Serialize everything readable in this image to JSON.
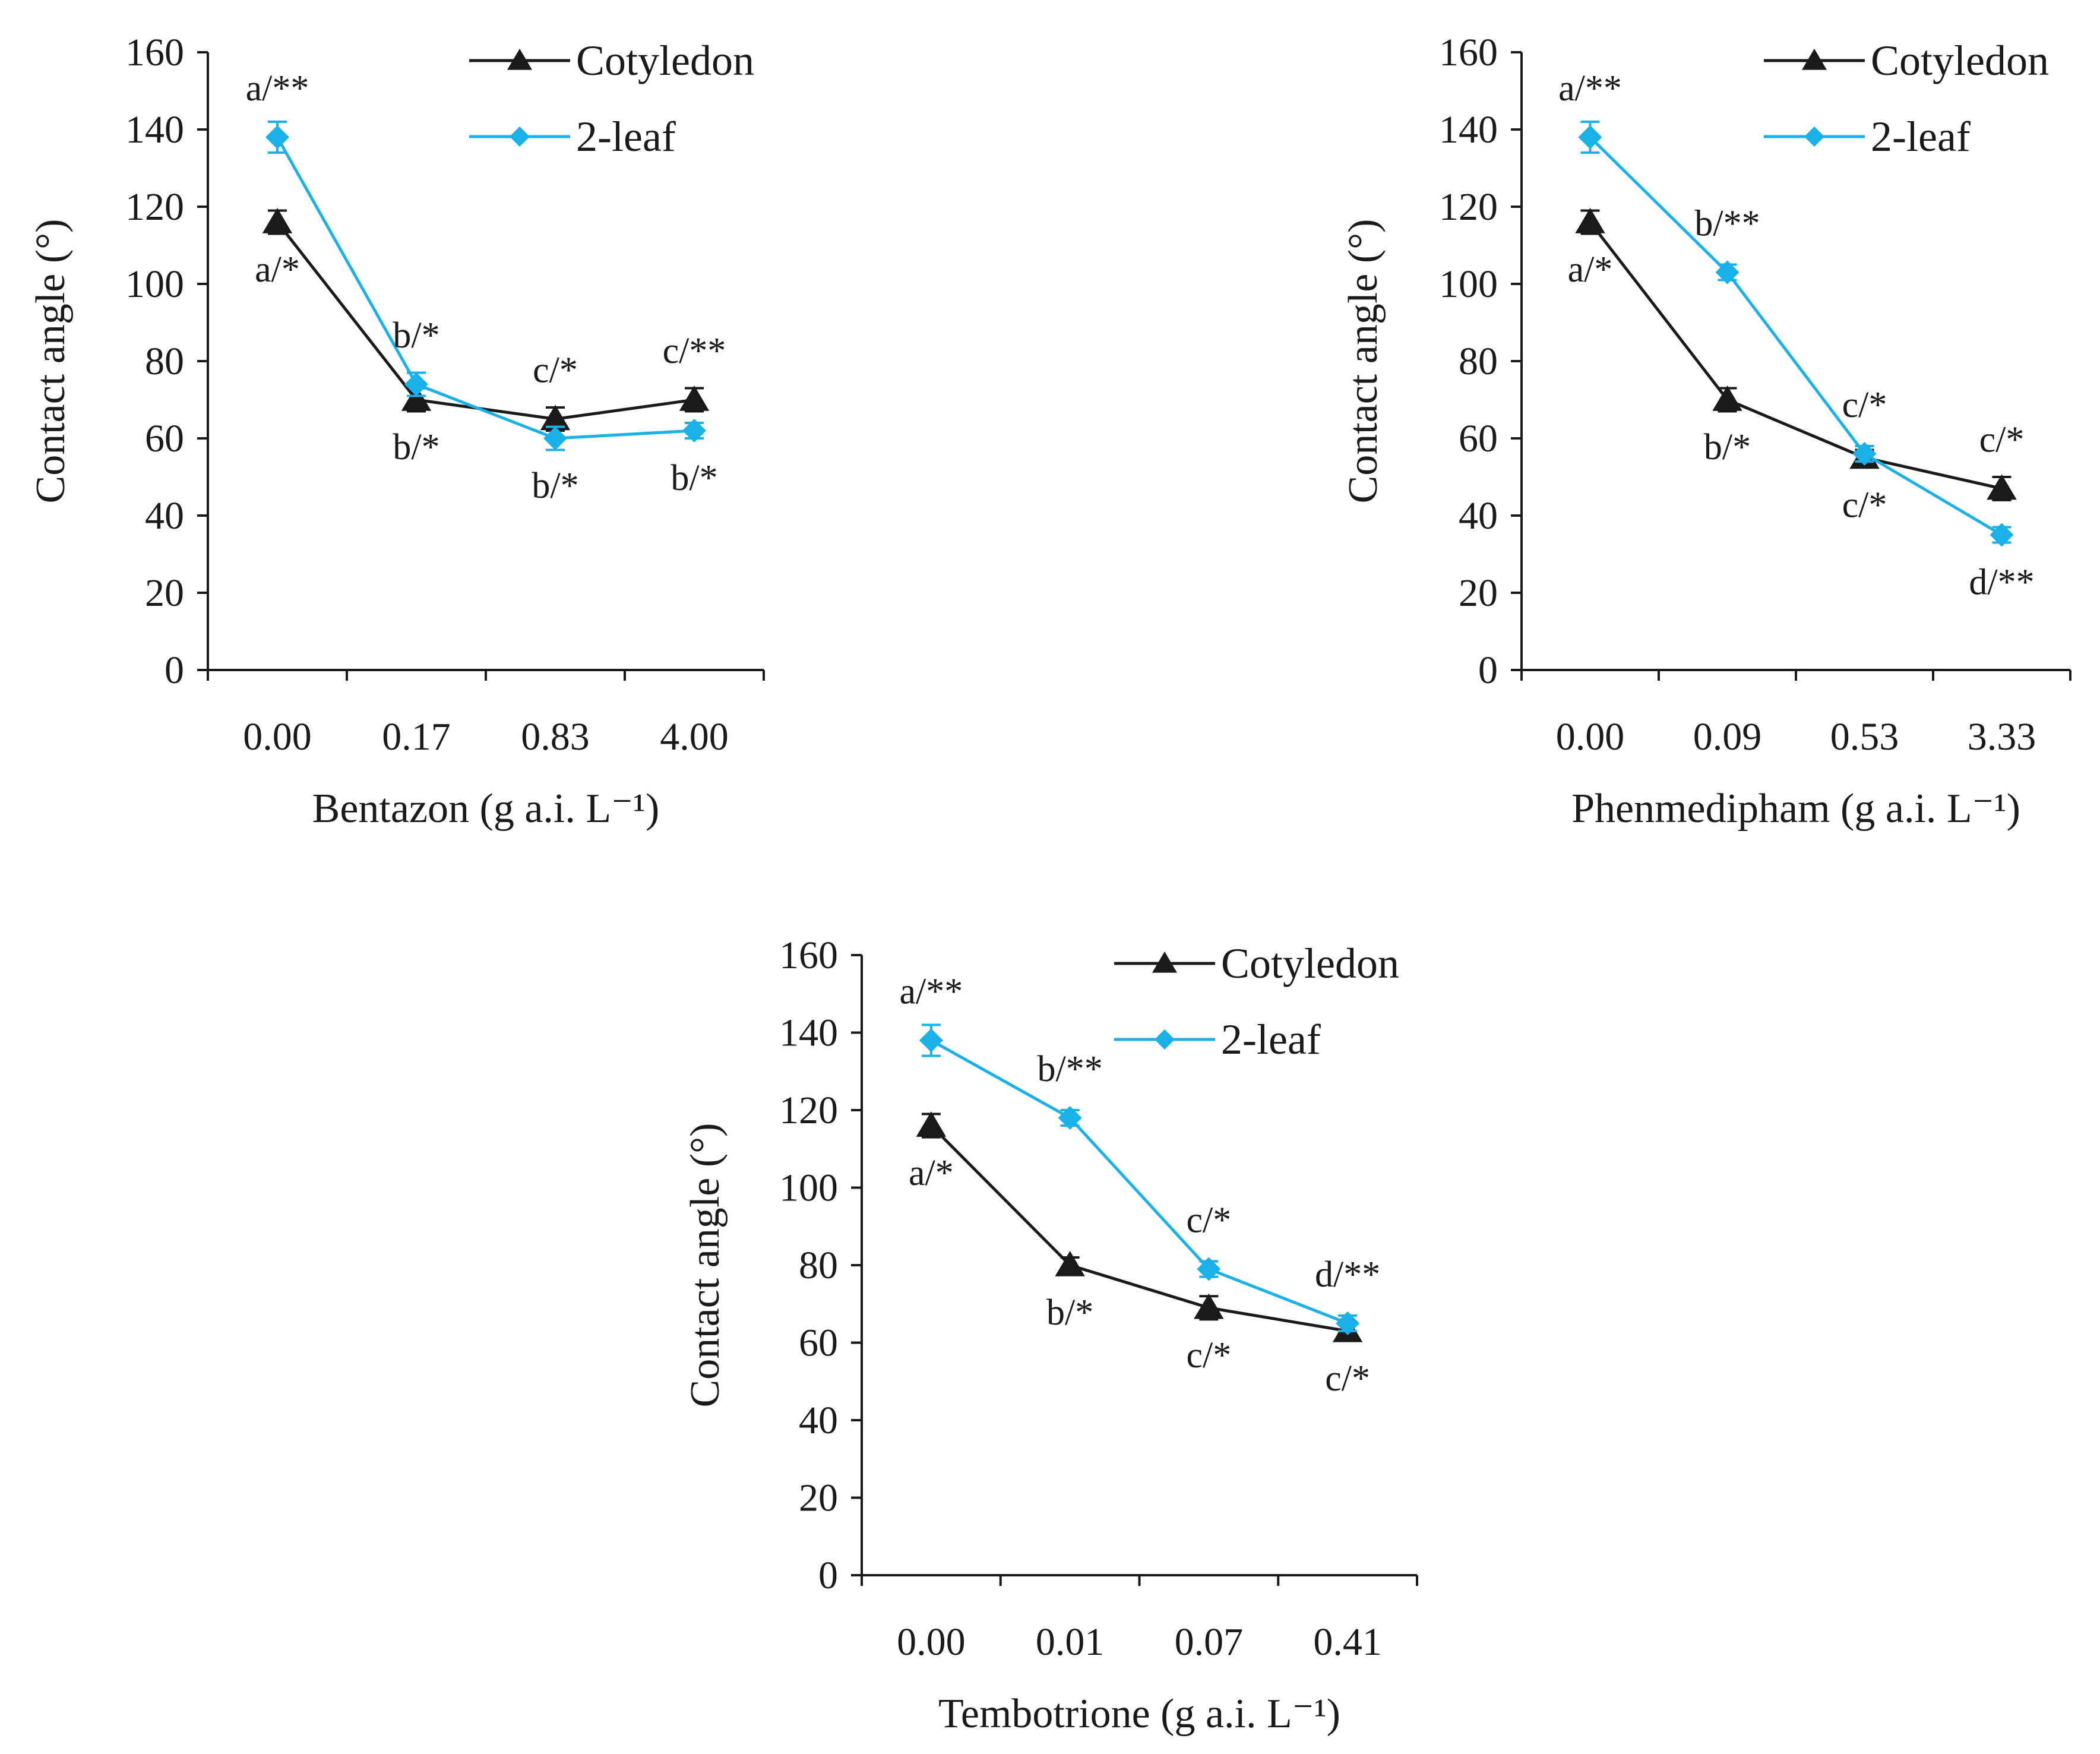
{
  "colors": {
    "cotyledon": "#1a1a1a",
    "leaf2": "#1ab0e8",
    "axis": "#1a1a1a"
  },
  "chart_data": [
    {
      "type": "line",
      "xlabel": "Bentazon (g a.i. L⁻¹)",
      "ylabel": "Contact angle (°)",
      "ylim": [
        0,
        160
      ],
      "yticks": [
        "0",
        "20",
        "40",
        "60",
        "80",
        "100",
        "120",
        "140",
        "160"
      ],
      "categories": [
        "0.00",
        "0.17",
        "0.83",
        "4.00"
      ],
      "legend": "top-right",
      "series": [
        {
          "name": "Cotyledon",
          "marker": "triangle",
          "values": [
            116,
            70,
            65,
            70
          ],
          "errors": [
            3,
            3,
            3,
            3
          ],
          "labels": [
            "a/*",
            "b/*",
            "c/*",
            "c/**"
          ],
          "label_pos": [
            "below",
            "below",
            "above",
            "above"
          ]
        },
        {
          "name": "2-leaf",
          "marker": "diamond",
          "values": [
            138,
            74,
            60,
            62
          ],
          "errors": [
            4,
            3,
            3,
            2
          ],
          "labels": [
            "a/**",
            "b/*",
            "b/*",
            "b/*"
          ],
          "label_pos": [
            "above",
            "above",
            "below",
            "below"
          ]
        }
      ]
    },
    {
      "type": "line",
      "xlabel": "Phenmedipham (g a.i. L⁻¹)",
      "ylabel": "Contact angle (°)",
      "ylim": [
        0,
        160
      ],
      "yticks": [
        "0",
        "20",
        "40",
        "60",
        "80",
        "100",
        "120",
        "140",
        "160"
      ],
      "categories": [
        "0.00",
        "0.09",
        "0.53",
        "3.33"
      ],
      "legend": "top-right",
      "series": [
        {
          "name": "Cotyledon",
          "marker": "triangle",
          "values": [
            116,
            70,
            55,
            47
          ],
          "errors": [
            3,
            3,
            2,
            3
          ],
          "labels": [
            "a/*",
            "b/*",
            "c/*",
            "c/*"
          ],
          "label_pos": [
            "below",
            "below",
            "below",
            "above"
          ]
        },
        {
          "name": "2-leaf",
          "marker": "diamond",
          "values": [
            138,
            103,
            56,
            35
          ],
          "errors": [
            4,
            2,
            2,
            2
          ],
          "labels": [
            "a/**",
            "b/**",
            "c/*",
            "d/**"
          ],
          "label_pos": [
            "above",
            "above",
            "above",
            "below"
          ]
        }
      ]
    },
    {
      "type": "line",
      "xlabel": "Tembotrione (g a.i. L⁻¹)",
      "ylabel": "Contact angle (°)",
      "ylim": [
        0,
        160
      ],
      "yticks": [
        "0",
        "20",
        "40",
        "60",
        "80",
        "100",
        "120",
        "140",
        "160"
      ],
      "categories": [
        "0.00",
        "0.01",
        "0.07",
        "0.41"
      ],
      "legend": "top-right",
      "series": [
        {
          "name": "Cotyledon",
          "marker": "triangle",
          "values": [
            116,
            80,
            69,
            63
          ],
          "errors": [
            3,
            2,
            3,
            2
          ],
          "labels": [
            "a/*",
            "b/*",
            "c/*",
            "c/*"
          ],
          "label_pos": [
            "below",
            "below",
            "below",
            "below"
          ]
        },
        {
          "name": "2-leaf",
          "marker": "diamond",
          "values": [
            138,
            118,
            79,
            65
          ],
          "errors": [
            4,
            2,
            2,
            2
          ],
          "labels": [
            "a/**",
            "b/**",
            "c/*",
            "d/**"
          ],
          "label_pos": [
            "above",
            "above",
            "above",
            "above"
          ]
        }
      ]
    }
  ]
}
